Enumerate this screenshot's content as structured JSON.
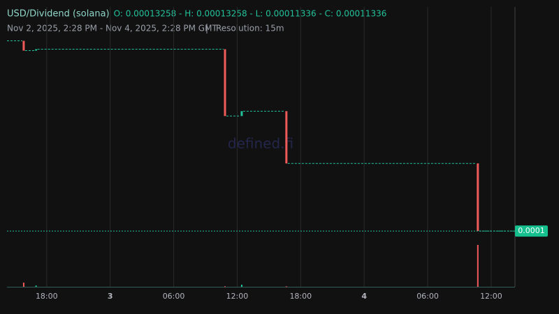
{
  "chart_data": {
    "type": "candlestick",
    "title": "USD/Dividend (solana)",
    "ohlc_text": "O: 0.00013258 - H: 0.00013258 - L: 0.00011336 - C: 0.00011336",
    "subtitle": "Nov 2, 2025, 2:28 PM - Nov 4, 2025, 2:28 PM GMT",
    "resolution": "Resolution: 15m",
    "watermark": "defined.fi",
    "xlim": [
      14.25,
      62.25
    ],
    "xticks": [
      {
        "value": 18,
        "label": "18:00"
      },
      {
        "value": 24,
        "label": "3"
      },
      {
        "value": 30,
        "label": "06:00"
      },
      {
        "value": 36,
        "label": "12:00"
      },
      {
        "value": 42,
        "label": "18:00"
      },
      {
        "value": 48,
        "label": "4"
      },
      {
        "value": 54,
        "label": "06:00"
      },
      {
        "value": 60,
        "label": "12:00"
      }
    ],
    "ylim": [
      0.0001085,
      0.000136
    ],
    "up_color": "#22c29b",
    "down_color": "#f05a5a",
    "volume_lim": [
      0,
      100
    ],
    "candles": [
      {
        "time": 15.83,
        "open": 0.00013258,
        "high": 0.00013258,
        "low": 0.00013159,
        "close": 0.00013159,
        "volume": 10
      },
      {
        "time": 17.0,
        "open": 0.00013159,
        "high": 0.00013173,
        "low": 0.00013159,
        "close": 0.00013173,
        "volume": 3
      },
      {
        "time": 34.85,
        "open": 0.00013173,
        "high": 0.00013173,
        "low": 0.00012498,
        "close": 0.00012498,
        "volume": 1
      },
      {
        "time": 36.43,
        "open": 0.00012498,
        "high": 0.00012547,
        "low": 0.00012498,
        "close": 0.00012547,
        "volume": 5
      },
      {
        "time": 40.65,
        "open": 0.00012547,
        "high": 0.00012547,
        "low": 0.00012019,
        "close": 0.00012019,
        "volume": 1
      },
      {
        "time": 58.74,
        "open": 0.00012019,
        "high": 0.00012019,
        "low": 0.00011336,
        "close": 0.00011336,
        "volume": 100
      }
    ],
    "last_price": 0.00011336,
    "last_price_label": "0.0001"
  }
}
